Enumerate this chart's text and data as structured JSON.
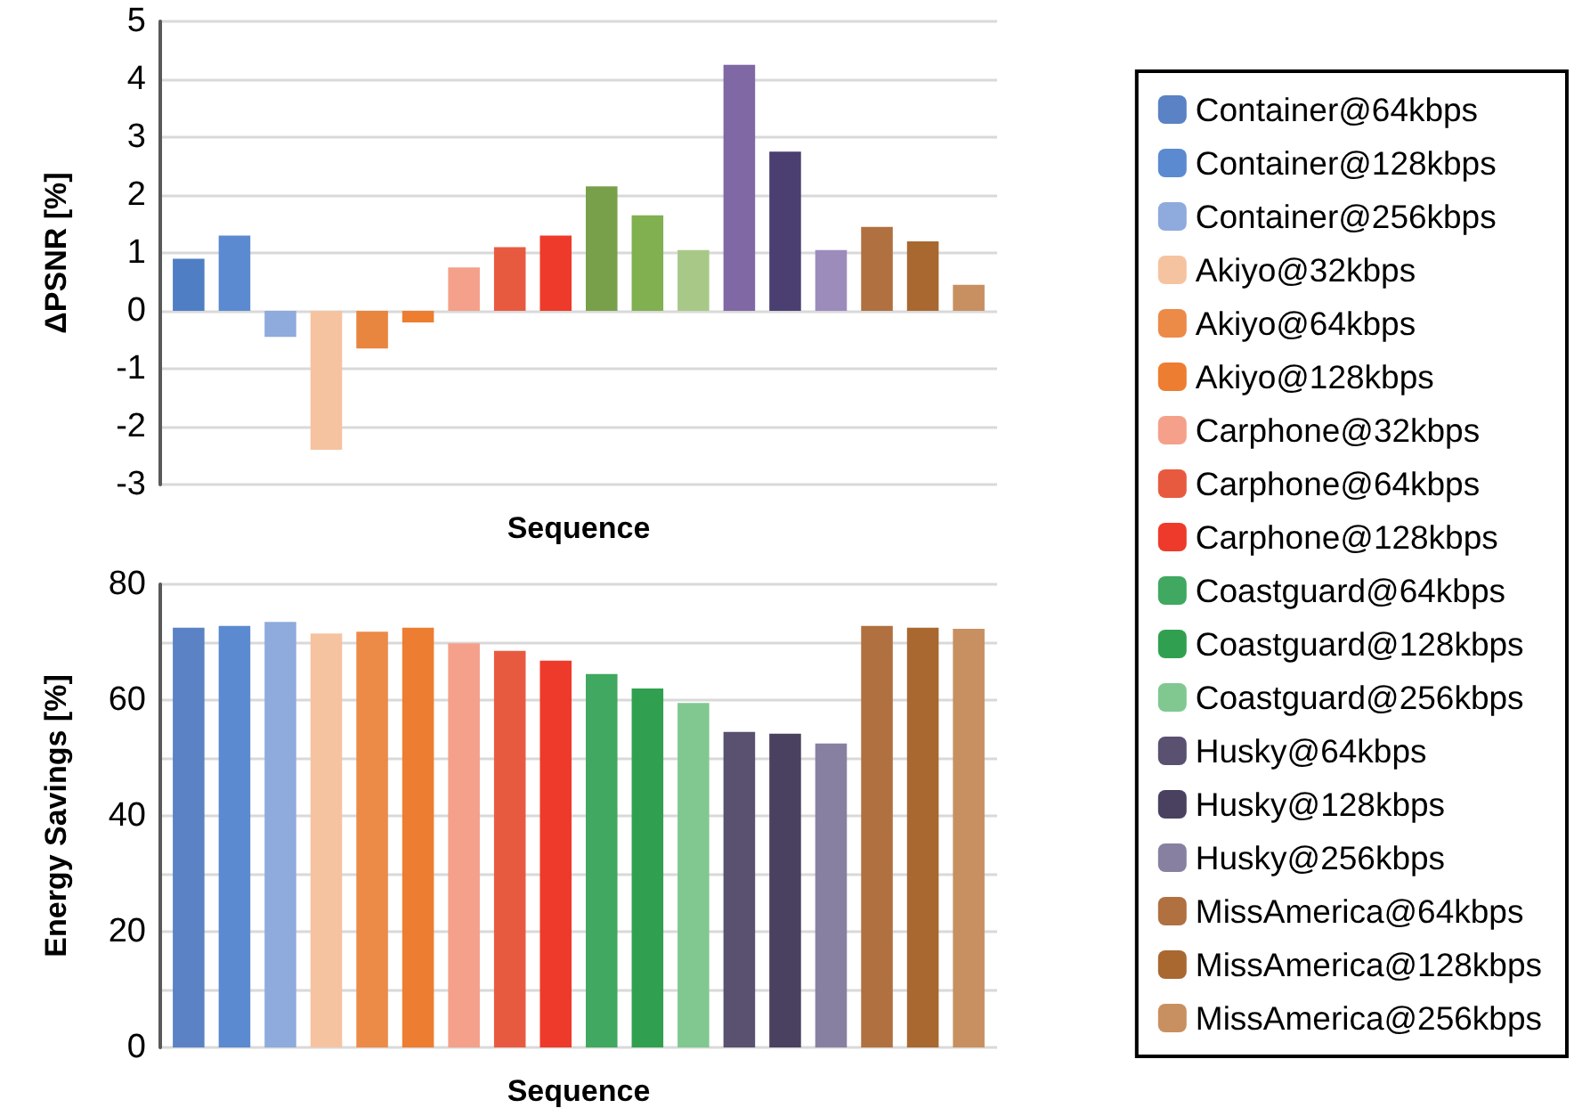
{
  "chart_data": [
    {
      "type": "bar",
      "ylabel": "ΔPSNR [%]",
      "xlabel": "Sequence",
      "categories": [
        null
      ],
      "ylim": [
        -3,
        5
      ],
      "yticks": [
        -3,
        -2,
        -1,
        0,
        1,
        2,
        3,
        4,
        5
      ],
      "grid": "y",
      "series": [
        {
          "color": "#4f7ec4",
          "values": [
            0.9
          ]
        },
        {
          "color": "#5b8ad0",
          "values": [
            1.3
          ]
        },
        {
          "color": "#8faadc",
          "values": [
            -0.45
          ]
        },
        {
          "color": "#f6c3a0",
          "values": [
            -2.4
          ]
        },
        {
          "color": "#e8853e",
          "values": [
            -0.65
          ]
        },
        {
          "color": "#ed7d31",
          "values": [
            -0.2
          ]
        },
        {
          "color": "#f4a08a",
          "values": [
            0.75
          ]
        },
        {
          "color": "#e85a40",
          "values": [
            1.1
          ]
        },
        {
          "color": "#ee3a2a",
          "values": [
            1.3
          ]
        },
        {
          "color": "#78a04a",
          "values": [
            2.15
          ]
        },
        {
          "color": "#80b050",
          "values": [
            1.65
          ]
        },
        {
          "color": "#a8c888",
          "values": [
            1.05
          ]
        },
        {
          "color": "#8068a4",
          "values": [
            4.25
          ]
        },
        {
          "color": "#4a3f70",
          "values": [
            2.75
          ]
        },
        {
          "color": "#9c8cbc",
          "values": [
            1.05
          ]
        },
        {
          "color": "#b07040",
          "values": [
            1.45
          ]
        },
        {
          "color": "#a86830",
          "values": [
            1.2
          ]
        },
        {
          "color": "#c89060",
          "values": [
            0.45
          ]
        }
      ]
    },
    {
      "type": "bar",
      "ylabel": "Energy Savings [%]",
      "xlabel": "Sequence",
      "categories": [
        null
      ],
      "ylim": [
        0,
        80
      ],
      "yticks": [
        0,
        {
          "value": 10,
          "label": null
        },
        20,
        {
          "value": 30,
          "label": null
        },
        40,
        {
          "value": 50,
          "label": null
        },
        60,
        {
          "value": 70,
          "label": null
        },
        80
      ],
      "grid": "y",
      "legend": "right",
      "series": [
        {
          "name": "Container@64kbps",
          "color": "#5a82c4",
          "values": [
            72.5
          ]
        },
        {
          "name": "Container@128kbps",
          "color": "#5b8ad0",
          "values": [
            72.8
          ]
        },
        {
          "name": "Container@256kbps",
          "color": "#8faadc",
          "values": [
            73.5
          ]
        },
        {
          "name": "Akiyo@32kbps",
          "color": "#f6c3a0",
          "values": [
            71.5
          ]
        },
        {
          "name": "Akiyo@64kbps",
          "color": "#ec8a48",
          "values": [
            71.8
          ]
        },
        {
          "name": "Akiyo@128kbps",
          "color": "#ed7d31",
          "values": [
            72.5
          ]
        },
        {
          "name": "Carphone@32kbps",
          "color": "#f4a08a",
          "values": [
            69.8
          ]
        },
        {
          "name": "Carphone@64kbps",
          "color": "#e85a40",
          "values": [
            68.5
          ]
        },
        {
          "name": "Carphone@128kbps",
          "color": "#ee3a2a",
          "values": [
            66.8
          ]
        },
        {
          "name": "Coastguard@64kbps",
          "color": "#40a860",
          "values": [
            64.5
          ]
        },
        {
          "name": "Coastguard@128kbps",
          "color": "#30a050",
          "values": [
            62
          ]
        },
        {
          "name": "Coastguard@256kbps",
          "color": "#80c890",
          "values": [
            59.5
          ]
        },
        {
          "name": "Husky@64kbps",
          "color": "#5a5070",
          "values": [
            54.5
          ]
        },
        {
          "name": "Husky@128kbps",
          "color": "#4a4060",
          "values": [
            54.2
          ]
        },
        {
          "name": "Husky@256kbps",
          "color": "#8880a0",
          "values": [
            52.5
          ]
        },
        {
          "name": "MissAmerica@64kbps",
          "color": "#b07040",
          "values": [
            72.8
          ]
        },
        {
          "name": "MissAmerica@128kbps",
          "color": "#a86830",
          "values": [
            72.5
          ]
        },
        {
          "name": "MissAmerica@256kbps",
          "color": "#c89060",
          "values": [
            72.3
          ]
        }
      ]
    }
  ]
}
